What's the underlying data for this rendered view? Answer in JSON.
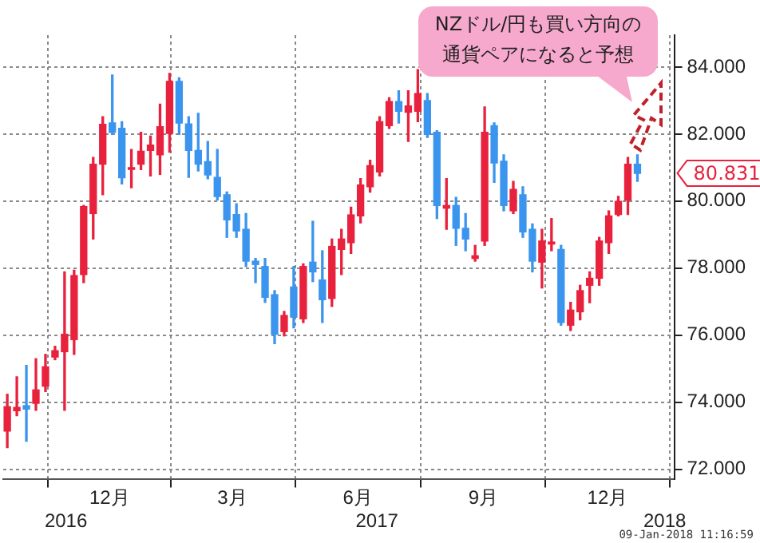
{
  "chart_data": {
    "type": "candlestick",
    "x": [
      "2016-10-03",
      "2016-10-10",
      "2016-10-17",
      "2016-10-24",
      "2016-10-31",
      "2016-11-07",
      "2016-11-14",
      "2016-11-21",
      "2016-11-28",
      "2016-12-05",
      "2016-12-12",
      "2016-12-19",
      "2016-12-26",
      "2017-01-02",
      "2017-01-09",
      "2017-01-16",
      "2017-01-23",
      "2017-01-30",
      "2017-02-06",
      "2017-02-13",
      "2017-02-20",
      "2017-02-27",
      "2017-03-06",
      "2017-03-13",
      "2017-03-20",
      "2017-03-27",
      "2017-04-03",
      "2017-04-10",
      "2017-04-17",
      "2017-04-24",
      "2017-05-01",
      "2017-05-08",
      "2017-05-15",
      "2017-05-22",
      "2017-05-29",
      "2017-06-05",
      "2017-06-12",
      "2017-06-19",
      "2017-06-26",
      "2017-07-03",
      "2017-07-10",
      "2017-07-17",
      "2017-07-24",
      "2017-07-31",
      "2017-08-07",
      "2017-08-14",
      "2017-08-21",
      "2017-08-28",
      "2017-09-04",
      "2017-09-11",
      "2017-09-18",
      "2017-09-25",
      "2017-10-02",
      "2017-10-09",
      "2017-10-16",
      "2017-10-23",
      "2017-10-30",
      "2017-11-06",
      "2017-11-13",
      "2017-11-20",
      "2017-11-27",
      "2017-12-04",
      "2017-12-11",
      "2017-12-18",
      "2017-12-25",
      "2018-01-01",
      "2018-01-08"
    ],
    "ohlc": [
      [
        73.14,
        74.24,
        72.65,
        73.87
      ],
      [
        73.75,
        74.76,
        73.6,
        73.85
      ],
      [
        73.9,
        75.1,
        72.84,
        73.8
      ],
      [
        73.97,
        75.3,
        73.76,
        74.37
      ],
      [
        74.48,
        75.43,
        74.32,
        75.06
      ],
      [
        75.35,
        75.67,
        75.27,
        75.54
      ],
      [
        75.51,
        77.89,
        73.76,
        76.03
      ],
      [
        75.87,
        77.94,
        75.43,
        77.78
      ],
      [
        77.81,
        79.87,
        77.57,
        79.84
      ],
      [
        79.63,
        81.3,
        78.87,
        81.1
      ],
      [
        81.1,
        82.52,
        80.19,
        82.29
      ],
      [
        82.33,
        83.76,
        81.99,
        82.05
      ],
      [
        82.17,
        82.37,
        80.51,
        80.7
      ],
      [
        80.95,
        81.54,
        80.4,
        81.0
      ],
      [
        81.1,
        82.05,
        80.94,
        81.49
      ],
      [
        81.51,
        81.94,
        80.75,
        81.67
      ],
      [
        81.38,
        82.89,
        80.8,
        82.22
      ],
      [
        82.02,
        83.81,
        81.46,
        83.57
      ],
      [
        83.57,
        83.68,
        81.99,
        82.33
      ],
      [
        82.3,
        82.52,
        80.71,
        81.51
      ],
      [
        81.51,
        82.62,
        80.9,
        81.1
      ],
      [
        81.18,
        81.78,
        80.67,
        80.78
      ],
      [
        80.71,
        81.54,
        80.03,
        80.14
      ],
      [
        80.19,
        80.27,
        78.92,
        79.44
      ],
      [
        79.6,
        79.92,
        78.92,
        79.11
      ],
      [
        79.16,
        79.63,
        78.05,
        78.21
      ],
      [
        78.21,
        78.29,
        77.57,
        78.11
      ],
      [
        78.05,
        78.29,
        76.98,
        77.13
      ],
      [
        77.21,
        77.33,
        75.75,
        76.03
      ],
      [
        76.11,
        76.71,
        75.98,
        76.59
      ],
      [
        77.44,
        78.05,
        76.22,
        76.54
      ],
      [
        76.49,
        78.13,
        76.38,
        78.05
      ],
      [
        78.18,
        79.4,
        77.6,
        77.89
      ],
      [
        77.65,
        78.52,
        76.38,
        77.06
      ],
      [
        77.1,
        78.87,
        76.86,
        78.65
      ],
      [
        78.56,
        79.16,
        77.81,
        78.87
      ],
      [
        78.76,
        79.82,
        78.44,
        79.59
      ],
      [
        79.56,
        80.67,
        79.35,
        80.48
      ],
      [
        80.43,
        81.22,
        80.27,
        81.06
      ],
      [
        80.87,
        82.52,
        80.75,
        82.37
      ],
      [
        82.25,
        83.08,
        82.17,
        82.97
      ],
      [
        82.97,
        83.29,
        82.33,
        82.68
      ],
      [
        82.65,
        83.29,
        81.78,
        82.84
      ],
      [
        82.68,
        83.92,
        82.37,
        83.21
      ],
      [
        83.0,
        83.21,
        81.9,
        81.99
      ],
      [
        82.05,
        82.1,
        79.48,
        79.87
      ],
      [
        79.79,
        80.67,
        79.16,
        79.87
      ],
      [
        79.87,
        80.11,
        78.68,
        79.19
      ],
      [
        79.19,
        79.63,
        78.52,
        78.87
      ],
      [
        78.29,
        78.68,
        78.21,
        78.37
      ],
      [
        78.81,
        82.81,
        78.68,
        82.05
      ],
      [
        82.25,
        82.33,
        80.56,
        81.14
      ],
      [
        81.19,
        81.38,
        79.71,
        79.87
      ],
      [
        79.71,
        80.59,
        79.63,
        80.35
      ],
      [
        80.19,
        80.43,
        78.92,
        79.08
      ],
      [
        79.16,
        79.32,
        77.89,
        78.21
      ],
      [
        78.18,
        79.16,
        77.41,
        78.81
      ],
      [
        78.72,
        79.48,
        78.52,
        78.78
      ],
      [
        78.56,
        78.68,
        76.3,
        76.38
      ],
      [
        76.3,
        76.98,
        76.14,
        76.75
      ],
      [
        76.7,
        77.49,
        76.46,
        77.33
      ],
      [
        77.49,
        77.89,
        76.97,
        77.7
      ],
      [
        77.7,
        78.92,
        77.49,
        78.81
      ],
      [
        78.76,
        79.71,
        78.44,
        79.56
      ],
      [
        79.6,
        80.14,
        79.56,
        79.99
      ],
      [
        80.03,
        81.3,
        79.6,
        81.1
      ],
      [
        81.1,
        81.38,
        80.59,
        80.831
      ]
    ],
    "colors": [
      "#e8213d",
      "#e8213d",
      "#3b95ee",
      "#e8213d",
      "#e8213d",
      "#e8213d",
      "#e8213d",
      "#e8213d",
      "#e8213d",
      "#e8213d",
      "#e8213d",
      "#3b95ee",
      "#3b95ee",
      "#e8213d",
      "#e8213d",
      "#e8213d",
      "#e8213d",
      "#e8213d",
      "#3b95ee",
      "#3b95ee",
      "#3b95ee",
      "#3b95ee",
      "#3b95ee",
      "#3b95ee",
      "#3b95ee",
      "#3b95ee",
      "#3b95ee",
      "#3b95ee",
      "#3b95ee",
      "#e8213d",
      "#3b95ee",
      "#e8213d",
      "#3b95ee",
      "#3b95ee",
      "#e8213d",
      "#e8213d",
      "#e8213d",
      "#e8213d",
      "#e8213d",
      "#e8213d",
      "#e8213d",
      "#3b95ee",
      "#e8213d",
      "#e8213d",
      "#3b95ee",
      "#3b95ee",
      "#e8213d",
      "#3b95ee",
      "#3b95ee",
      "#e8213d",
      "#e8213d",
      "#3b95ee",
      "#3b95ee",
      "#e8213d",
      "#3b95ee",
      "#3b95ee",
      "#e8213d",
      "#e8213d",
      "#3b95ee",
      "#e8213d",
      "#e8213d",
      "#e8213d",
      "#e8213d",
      "#e8213d",
      "#e8213d",
      "#e8213d",
      "#3b95ee"
    ],
    "xlim": [
      "2016-09-30",
      "2018-02-04"
    ],
    "xticks": [
      {
        "value": "2016-12-17",
        "label": "12月"
      },
      {
        "value": "2017-03-17",
        "label": "3月"
      },
      {
        "value": "2017-06-17",
        "label": "6月"
      },
      {
        "value": "2017-09-17",
        "label": "9月"
      },
      {
        "value": "2017-12-17",
        "label": "12月"
      }
    ],
    "x2lim": [
      "2016-09-30",
      "2018-02-04"
    ],
    "x2ticks": [
      {
        "value": "2016-11-15",
        "label": "2016"
      },
      {
        "value": "2017-07-01",
        "label": "2017"
      },
      {
        "value": "2018-01-28",
        "label": "2018"
      }
    ],
    "ylim": [
      71.7,
      84.95
    ],
    "yticks": [
      {
        "value": 72,
        "label": "72.000"
      },
      {
        "value": 74,
        "label": "74.000"
      },
      {
        "value": 76,
        "label": "76.000"
      },
      {
        "value": 78,
        "label": "78.000"
      },
      {
        "value": 80,
        "label": "80.000"
      },
      {
        "value": 82,
        "label": "82.000"
      },
      {
        "value": 84,
        "label": "84.000"
      }
    ],
    "grid": true,
    "annotations": [
      "NZドル/円も買い方向の通貨ペアになると予想",
      "80.831",
      "09-Jan-2018 11:16:59"
    ]
  }
}
